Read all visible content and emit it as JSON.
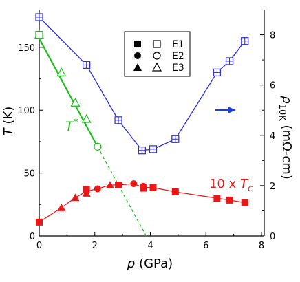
{
  "chart_data": {
    "type": "scatter",
    "title": "",
    "xlabel": "p (GPa)",
    "xlabel_symbol": "p",
    "xlabel_unit": "(GPa)",
    "ylabel_left": "T (K)",
    "ylabel_left_symbol": "T",
    "ylabel_left_unit": "(K)",
    "ylabel_right": "ρ10K (mΩ-cm)",
    "ylabel_right_symbol": "ρ",
    "ylabel_right_sub": "10K",
    "ylabel_right_unit": "(mΩ-cm)",
    "xlim": [
      0,
      8.1
    ],
    "ylim_left": [
      0,
      180
    ],
    "ylim_right": [
      0,
      9
    ],
    "xticks": [
      0,
      2,
      4,
      6,
      8
    ],
    "yticks_left": [
      0,
      50,
      100,
      150
    ],
    "yticks_right": [
      0,
      2,
      4,
      6,
      8
    ],
    "grid": false,
    "legend_rows": [
      {
        "label": "E1",
        "filled_shape": "square",
        "open_shape": "square"
      },
      {
        "label": "E2",
        "filled_shape": "circle",
        "open_shape": "circle"
      },
      {
        "label": "E3",
        "filled_shape": "triangle",
        "open_shape": "triangle"
      }
    ],
    "legend_placement": "top-center",
    "annotations": {
      "tstar": {
        "symbol": "T",
        "sup": "*"
      },
      "tc": {
        "prefix": "10 x ",
        "symbol": "T",
        "sub": "c"
      }
    },
    "colors": {
      "rho": "#2a2ad8",
      "tc": "#e81818",
      "tstar": "#19c019",
      "arrow": "#1a3de0",
      "axis": "#000000"
    },
    "series": [
      {
        "id": "rho",
        "axis": "right",
        "marker": "boxed-plus",
        "x": [
          0.0,
          1.7,
          2.85,
          3.7,
          4.1,
          4.9,
          6.4,
          6.85,
          7.4
        ],
        "y": [
          8.7,
          6.8,
          4.6,
          3.4,
          3.45,
          3.85,
          6.5,
          6.95,
          7.75
        ]
      },
      {
        "id": "tc_e1",
        "axis": "left",
        "marker": "filled-square",
        "x": [
          0.0,
          1.7,
          2.85,
          3.75,
          4.1,
          4.9,
          6.4,
          6.85,
          7.4
        ],
        "y": [
          11,
          37,
          40.5,
          38,
          38.5,
          35,
          30,
          28.5,
          26.5
        ]
      },
      {
        "id": "tc_e2",
        "axis": "left",
        "marker": "filled-circle",
        "x": [
          2.1,
          3.4,
          3.75
        ],
        "y": [
          37.5,
          41.5,
          39.5
        ]
      },
      {
        "id": "tc_e3",
        "axis": "left",
        "marker": "filled-triangle",
        "x": [
          0.8,
          1.3,
          1.7,
          2.55
        ],
        "y": [
          22.5,
          30.5,
          34,
          40.5
        ]
      },
      {
        "id": "tc_line",
        "axis": "left",
        "marker": "none",
        "x": [
          0.0,
          0.8,
          1.3,
          1.7,
          2.1,
          2.55,
          2.85,
          3.4,
          3.75,
          4.1,
          4.9,
          6.4,
          6.85,
          7.4
        ],
        "y": [
          11,
          22.5,
          30.5,
          35.5,
          37.5,
          40.5,
          40.5,
          41.5,
          38.5,
          38.5,
          35,
          30,
          28.5,
          26.5
        ]
      },
      {
        "id": "tstar_e1",
        "axis": "left",
        "marker": "open-square",
        "x": [
          0.0
        ],
        "y": [
          160
        ]
      },
      {
        "id": "tstar_e2",
        "axis": "left",
        "marker": "open-circle",
        "x": [
          2.1
        ],
        "y": [
          71
        ]
      },
      {
        "id": "tstar_e3",
        "axis": "left",
        "marker": "open-triangle",
        "x": [
          0.0,
          0.8,
          1.3,
          1.7
        ],
        "y": [
          160,
          130,
          106,
          93
        ]
      },
      {
        "id": "tstar_fit_solid",
        "axis": "left",
        "marker": "none",
        "x": [
          0.0,
          2.1
        ],
        "y": [
          157,
          71
        ]
      },
      {
        "id": "tstar_fit_dashed",
        "axis": "left",
        "marker": "none",
        "x": [
          2.1,
          3.85
        ],
        "y": [
          71,
          0
        ]
      }
    ]
  }
}
